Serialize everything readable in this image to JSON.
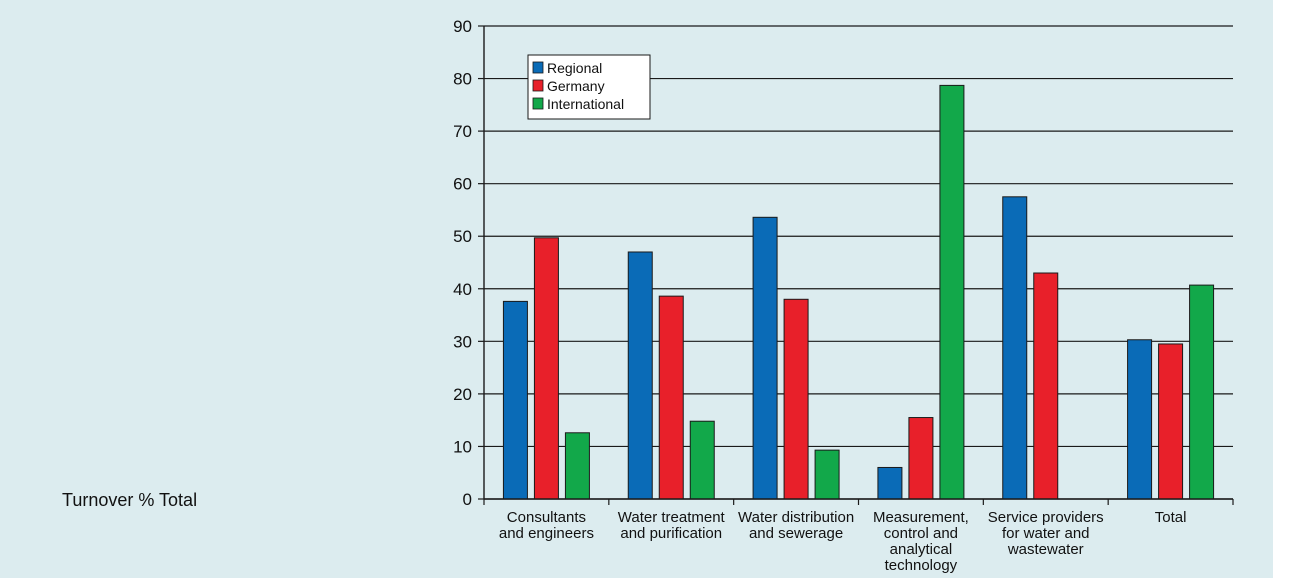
{
  "side_label": "Turnover % Total",
  "colors": {
    "Regional": "#0a6bb7",
    "Germany": "#e8202a",
    "International": "#12a84a"
  },
  "chart_data": {
    "type": "bar",
    "title": "",
    "xlabel": "",
    "ylabel": "",
    "ylim": [
      0,
      90
    ],
    "yticks": [
      0,
      10,
      20,
      30,
      40,
      50,
      60,
      70,
      80,
      90
    ],
    "grid": true,
    "legend_position": "top-left",
    "categories": [
      [
        "Consultants",
        "and engineers"
      ],
      [
        "Water treatment",
        "and purification"
      ],
      [
        "Water distribution",
        "and sewerage"
      ],
      [
        "Measurement,",
        "control and",
        "analytical",
        "technology"
      ],
      [
        "Service providers",
        "for water and",
        "wastewater"
      ],
      [
        "Total"
      ]
    ],
    "series": [
      {
        "name": "Regional",
        "values": [
          37.6,
          47.0,
          53.6,
          6.0,
          57.5,
          30.3
        ]
      },
      {
        "name": "Germany",
        "values": [
          49.7,
          38.6,
          38.0,
          15.5,
          43.0,
          29.5
        ]
      },
      {
        "name": "International",
        "values": [
          12.6,
          14.8,
          9.3,
          78.7,
          0,
          40.7
        ]
      }
    ]
  }
}
